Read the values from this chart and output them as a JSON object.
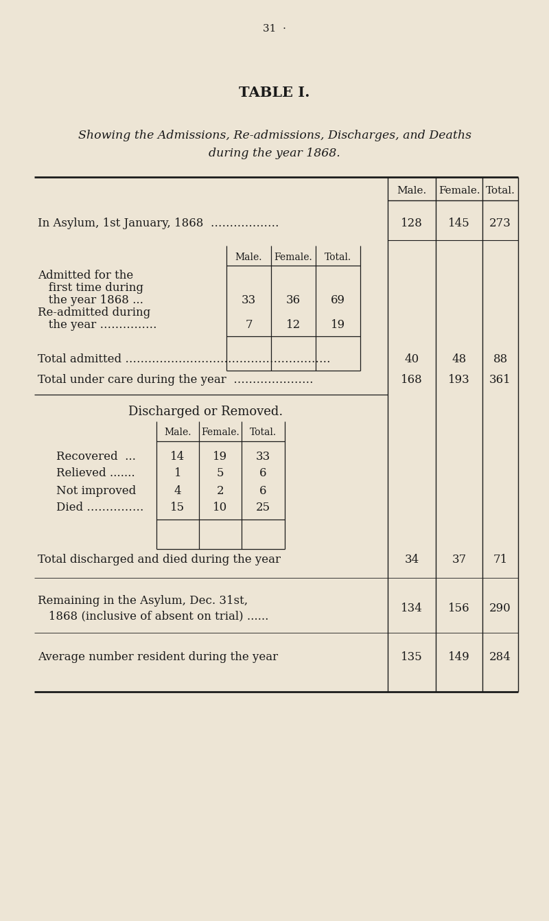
{
  "bg_color": "#ede5d5",
  "text_color": "#1a1a1a",
  "page_number": "31  ·",
  "title": "TABLE I.",
  "subtitle_line1": "Showing the Admissions, Re-admissions, Discharges, and Deaths",
  "subtitle_line2": "during the year 1868.",
  "row1_label": "In Asylum, 1st January, 1868  ………………",
  "row1_values": [
    "128",
    "145",
    "273"
  ],
  "admitted_label1": "Admitted for the",
  "admitted_label2": "   first time during",
  "admitted_label3": "   the year 1868 ...",
  "admitted_values": [
    "33",
    "36",
    "69"
  ],
  "readmitted_label1": "Re-admitted during",
  "readmitted_label2": "   the year ……………",
  "readmitted_values": [
    "7",
    "12",
    "19"
  ],
  "total_admitted_label": "Total admitted ………………………………………………",
  "total_admitted_values": [
    "40",
    "48",
    "88"
  ],
  "total_care_label": "Total under care during the year  …………………",
  "total_care_values": [
    "168",
    "193",
    "361"
  ],
  "discharged_header": "Discharged or Removed.",
  "recovered_label": "Recovered  ...",
  "recovered_values": [
    "14",
    "19",
    "33"
  ],
  "relieved_label": "Relieved .......",
  "relieved_values": [
    "1",
    "5",
    "6"
  ],
  "not_improved_label": "Not improved",
  "not_improved_values": [
    "4",
    "2",
    "6"
  ],
  "died_label": "Died ……………",
  "died_values": [
    "15",
    "10",
    "25"
  ],
  "total_discharged_label": "Total discharged and died during the year",
  "total_discharged_values": [
    "34",
    "37",
    "71"
  ],
  "remaining_label1": "Remaining in the Asylum, Dec. 31st,",
  "remaining_label2": "   1868 (inclusive of absent on trial) ......",
  "remaining_values": [
    "134",
    "156",
    "290"
  ],
  "average_label": "Average number resident during the year",
  "average_values": [
    "135",
    "149",
    "284"
  ]
}
